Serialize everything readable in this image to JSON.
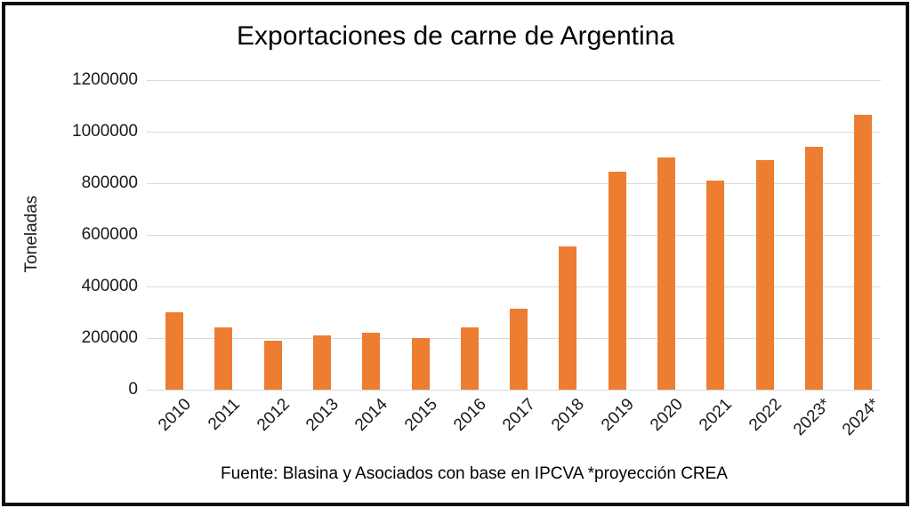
{
  "window": {
    "background_color": "#ffffff",
    "frame_border_color": "#0d0d0d"
  },
  "chart_data": {
    "type": "bar",
    "title": "Exportaciones de carne de Argentina",
    "xlabel": "",
    "ylabel": "Toneladas",
    "source_note": "Fuente: Blasina y Asociados con base en IPCVA *proyección CREA",
    "categories": [
      "2010",
      "2011",
      "2012",
      "2013",
      "2014",
      "2015",
      "2016",
      "2017",
      "2018",
      "2019",
      "2020",
      "2021",
      "2022",
      "2023*",
      "2024*"
    ],
    "values": [
      300000,
      240000,
      190000,
      210000,
      220000,
      200000,
      240000,
      315000,
      555000,
      845000,
      900000,
      810000,
      890000,
      940000,
      1065000
    ],
    "ylim": [
      0,
      1200000
    ],
    "ytick_step": 200000,
    "yticks": [
      0,
      200000,
      400000,
      600000,
      800000,
      1000000,
      1200000
    ],
    "ytick_labels": [
      "0",
      "200000",
      "400000",
      "600000",
      "800000",
      "1000000",
      "1200000"
    ],
    "bar_color": "#ED7D31",
    "gridline_color": "#d9d9d9",
    "grid": true,
    "legend": "none",
    "notes": "asterisk on 2023 and 2024 marks CREA projection"
  }
}
